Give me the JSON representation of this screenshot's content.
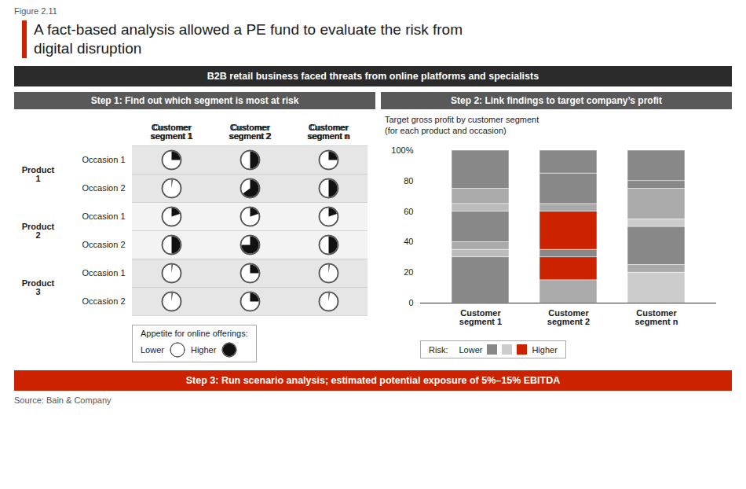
{
  "figure_label": "Figure 2.11",
  "title": "A fact-based analysis allowed a PE fund to evaluate the risk from\ndigital disruption",
  "subtitle": "B2B retail business faced threats from online platforms and specialists",
  "caption": "Step 3: Run scenario analysis; estimated potential exposure of 5%–15% EBITDA",
  "source": "Source: Bain & Company",
  "chart_data": [
    {
      "type": "pie",
      "title": "Step 1: Find out which segment is most at risk",
      "categories": [
        "Customer\nsegment 1",
        "Customer\nsegment 2",
        "Customer\nsegment n"
      ],
      "rows": [
        {
          "group": "Product\n1",
          "label": "Occasion 1",
          "values": [
            0.25,
            0.5,
            0.25
          ]
        },
        {
          "group": "Product\n1",
          "label": "Occasion 2",
          "values": [
            0.02,
            0.65,
            0.5
          ]
        },
        {
          "group": "Product\n2",
          "label": "Occasion 1",
          "values": [
            0.2,
            0.2,
            0.2
          ]
        },
        {
          "group": "Product\n2",
          "label": "Occasion 2",
          "values": [
            0.5,
            0.75,
            0.5
          ]
        },
        {
          "group": "Product\n3",
          "label": "Occasion 1",
          "values": [
            0.02,
            0.25,
            0.02
          ]
        },
        {
          "group": "Product\n3",
          "label": "Occasion 2",
          "values": [
            0.02,
            0.25,
            0.02
          ]
        }
      ],
      "legend_title": "Appetite for online offerings:",
      "legend_labels": [
        "Lower",
        "Higher"
      ],
      "legend_values": [
        0.01,
        1.0
      ]
    },
    {
      "type": "bar",
      "stacked": true,
      "title": "Step 2: Link findings to target company’s profit",
      "subtitle": "Target gross profit by customer segment\n(for each product and occasion)",
      "categories": [
        "Customer\nsegment 1",
        "Customer\nsegment 2",
        "Customer\nsegment n"
      ],
      "series": [
        {
          "values": [
            30,
            15,
            20
          ],
          "colors": [
            "#888888",
            "#aaaaaa",
            "#cccccc"
          ]
        },
        {
          "values": [
            5,
            15,
            5
          ],
          "colors": [
            "#bbbbbb",
            "#cc2200",
            "#aaaaaa"
          ]
        },
        {
          "values": [
            5,
            5,
            25
          ],
          "colors": [
            "#aaaaaa",
            "#888888",
            "#888888"
          ]
        },
        {
          "values": [
            20,
            25,
            5
          ],
          "colors": [
            "#888888",
            "#cc2200",
            "#cccccc"
          ]
        },
        {
          "values": [
            5,
            5,
            20
          ],
          "colors": [
            "#bbbbbb",
            "#aaaaaa",
            "#aaaaaa"
          ]
        },
        {
          "values": [
            10,
            20,
            5
          ],
          "colors": [
            "#aaaaaa",
            "#888888",
            "#888888"
          ]
        },
        {
          "values": [
            25,
            15,
            20
          ],
          "colors": [
            "#888888",
            "#888888",
            "#888888"
          ]
        }
      ],
      "ylim": [
        0,
        100
      ],
      "yticks": [
        0,
        20,
        40,
        60,
        80,
        {
          "value": 100,
          "label": "100%"
        }
      ],
      "grid": false,
      "legend_title": "Risk:",
      "legend_labels": [
        "Lower",
        "Higher"
      ],
      "legend_colors": [
        "#888888",
        "#cccccc",
        "#cc2200"
      ]
    }
  ]
}
